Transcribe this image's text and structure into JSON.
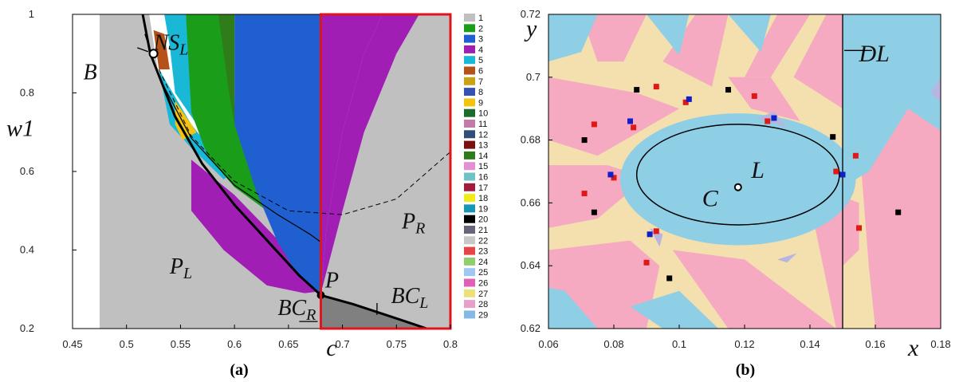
{
  "chart_data": [
    {
      "type": "heatmap",
      "panel_caption": "(a)",
      "xlabel": "c",
      "ylabel": "w1",
      "xlim": [
        0.45,
        0.8
      ],
      "ylim": [
        0.2,
        1.0
      ],
      "xticks": [
        "0.45",
        "0.5",
        "0.55",
        "0.6",
        "0.65",
        "0.7",
        "0.75",
        "0.8"
      ],
      "yticks": [
        "0.2",
        "0.4",
        "0.6",
        "0.8",
        "1"
      ],
      "legend_placement": "right",
      "legend": [
        {
          "label": "1",
          "color": "#c0c0c0"
        },
        {
          "label": "2",
          "color": "#1a9e1a"
        },
        {
          "label": "3",
          "color": "#1f5fd0"
        },
        {
          "label": "4",
          "color": "#a11eb5"
        },
        {
          "label": "5",
          "color": "#19b8d6"
        },
        {
          "label": "6",
          "color": "#b5521a"
        },
        {
          "label": "7",
          "color": "#c8a316"
        },
        {
          "label": "8",
          "color": "#3552b0"
        },
        {
          "label": "9",
          "color": "#f2c40f"
        },
        {
          "label": "10",
          "color": "#1b6b2a"
        },
        {
          "label": "11",
          "color": "#c27aa6"
        },
        {
          "label": "12",
          "color": "#2f4f7a"
        },
        {
          "label": "13",
          "color": "#7a1010"
        },
        {
          "label": "14",
          "color": "#2f7d1a"
        },
        {
          "label": "15",
          "color": "#e48fd4"
        },
        {
          "label": "16",
          "color": "#6fc2c6"
        },
        {
          "label": "17",
          "color": "#9e1f3d"
        },
        {
          "label": "18",
          "color": "#f3ea1a"
        },
        {
          "label": "19",
          "color": "#1796b5"
        },
        {
          "label": "20",
          "color": "#000000"
        },
        {
          "label": "21",
          "color": "#66667a"
        },
        {
          "label": "22",
          "color": "#c8c8c8"
        },
        {
          "label": "23",
          "color": "#e64545"
        },
        {
          "label": "24",
          "color": "#8fcf6e"
        },
        {
          "label": "25",
          "color": "#9fc7f5"
        },
        {
          "label": "26",
          "color": "#e060b8"
        },
        {
          "label": "27",
          "color": "#ece07a"
        },
        {
          "label": "28",
          "color": "#e8a0c8"
        },
        {
          "label": "29",
          "color": "#86b8e6"
        }
      ],
      "annotations": [
        {
          "text": "NS",
          "sub": "L",
          "x": 0.525,
          "y": 0.91
        },
        {
          "text": "B",
          "x": 0.46,
          "y": 0.835
        },
        {
          "text": "P",
          "sub": "L",
          "x": 0.54,
          "y": 0.34
        },
        {
          "text": "P",
          "sub": "R",
          "x": 0.755,
          "y": 0.455
        },
        {
          "text": "P",
          "x": 0.684,
          "y": 0.305
        },
        {
          "text": "BC",
          "sub": "R",
          "x": 0.64,
          "y": 0.235
        },
        {
          "text": "BC",
          "sub": "L",
          "x": 0.745,
          "y": 0.265
        }
      ],
      "marked_points": [
        {
          "name": "NS_L",
          "x": 0.525,
          "y": 0.9,
          "style": "open"
        },
        {
          "name": "P",
          "x": 0.68,
          "y": 0.285,
          "style": "filled"
        }
      ],
      "curves": {
        "thick_curve": [
          [
            0.522,
            0.9
          ],
          [
            0.545,
            0.74
          ],
          [
            0.57,
            0.62
          ],
          [
            0.6,
            0.515
          ],
          [
            0.63,
            0.425
          ],
          [
            0.66,
            0.335
          ],
          [
            0.68,
            0.285
          ],
          [
            0.71,
            0.262
          ],
          [
            0.74,
            0.235
          ],
          [
            0.778,
            0.2
          ]
        ],
        "thin_curve": [
          [
            0.517,
            0.95
          ],
          [
            0.53,
            0.84
          ],
          [
            0.56,
            0.685
          ],
          [
            0.6,
            0.565
          ],
          [
            0.64,
            0.49
          ],
          [
            0.67,
            0.44
          ],
          [
            0.68,
            0.42
          ]
        ],
        "dashed_curve": [
          [
            0.53,
            0.86
          ],
          [
            0.56,
            0.69
          ],
          [
            0.6,
            0.575
          ],
          [
            0.65,
            0.5
          ],
          [
            0.7,
            0.49
          ],
          [
            0.75,
            0.53
          ],
          [
            0.8,
            0.65
          ]
        ]
      }
    },
    {
      "type": "heatmap",
      "panel_caption": "(b)",
      "xlabel": "x",
      "ylabel": "y",
      "xlim": [
        0.06,
        0.18
      ],
      "ylim": [
        0.62,
        0.72
      ],
      "xticks": [
        "0.06",
        "0.08",
        "0.1",
        "0.12",
        "0.14",
        "0.16",
        "0.18"
      ],
      "yticks": [
        "0.62",
        "0.64",
        "0.66",
        "0.68",
        "0.7",
        "0.72"
      ],
      "region_colors": {
        "blue": "#8ecfe6",
        "pink": "#f5aac2",
        "sand": "#f4dfae",
        "lavender": "#b8b6e0"
      },
      "annotations": [
        {
          "text": "DL",
          "x": 0.155,
          "y": 0.705
        },
        {
          "text": "L",
          "x": 0.122,
          "y": 0.668
        },
        {
          "text": "C",
          "x": 0.107,
          "y": 0.659
        }
      ],
      "vertical_line_x": 0.15,
      "marked_point": {
        "name": "L",
        "x": 0.118,
        "y": 0.665
      },
      "ellipse_C": {
        "cx": 0.118,
        "cy": 0.669,
        "rx": 0.031,
        "ry": 0.016
      },
      "black_points": [
        [
          0.087,
          0.696
        ],
        [
          0.115,
          0.696
        ],
        [
          0.071,
          0.68
        ],
        [
          0.147,
          0.681
        ],
        [
          0.074,
          0.657
        ],
        [
          0.097,
          0.636
        ],
        [
          0.167,
          0.657
        ]
      ],
      "red_points": [
        [
          0.093,
          0.697
        ],
        [
          0.102,
          0.692
        ],
        [
          0.123,
          0.694
        ],
        [
          0.074,
          0.685
        ],
        [
          0.086,
          0.684
        ],
        [
          0.127,
          0.686
        ],
        [
          0.148,
          0.67
        ],
        [
          0.154,
          0.675
        ],
        [
          0.071,
          0.663
        ],
        [
          0.08,
          0.668
        ],
        [
          0.093,
          0.651
        ],
        [
          0.09,
          0.641
        ],
        [
          0.155,
          0.652
        ]
      ],
      "blue_points": [
        [
          0.103,
          0.693
        ],
        [
          0.085,
          0.686
        ],
        [
          0.129,
          0.687
        ],
        [
          0.079,
          0.669
        ],
        [
          0.15,
          0.669
        ],
        [
          0.091,
          0.65
        ]
      ]
    }
  ]
}
